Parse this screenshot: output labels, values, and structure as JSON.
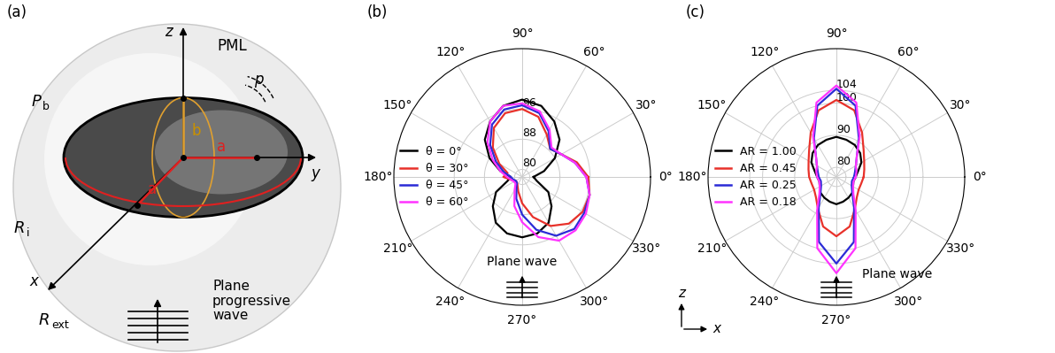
{
  "panel_labels": [
    "(a)",
    "(b)",
    "(c)"
  ],
  "diagram": {
    "outer_region": "PML",
    "axis_x": "x",
    "axis_y": "y",
    "axis_z": "z",
    "pressure": "p",
    "semi_axis_a": "a",
    "semi_axis_b": "b",
    "background_pressure": {
      "text": "P",
      "subscript": "b"
    },
    "inner_radius": {
      "text": "R",
      "subscript": "i"
    },
    "outer_radius": {
      "text": "R",
      "subscript": "ext"
    },
    "incident_wave": [
      "Plane",
      "progressive",
      "wave"
    ]
  },
  "axes_icon": {
    "vertical": "z",
    "horizontal": "x"
  },
  "chart_data": [
    {
      "type": "polar",
      "annotation": "Plane wave",
      "grid": true,
      "legend": "center left",
      "x": [
        0,
        15,
        30,
        45,
        60,
        75,
        90,
        105,
        120,
        135,
        150,
        165,
        180,
        195,
        210,
        225,
        240,
        255,
        270,
        285,
        300,
        315,
        330,
        345
      ],
      "xlim": [
        0,
        360
      ],
      "xticks": [
        {
          "value": 0,
          "label": "0°"
        },
        {
          "value": 30,
          "label": "30°"
        },
        {
          "value": 60,
          "label": "60°"
        },
        {
          "value": 90,
          "label": "90°"
        },
        {
          "value": 120,
          "label": "120°"
        },
        {
          "value": 150,
          "label": "150°"
        },
        {
          "value": 180,
          "label": "180°"
        },
        {
          "value": 210,
          "label": "210°"
        },
        {
          "value": 240,
          "label": "240°"
        },
        {
          "value": 270,
          "label": "270°"
        },
        {
          "value": 300,
          "label": "300°"
        },
        {
          "value": 330,
          "label": "330°"
        }
      ],
      "ylim": [
        78,
        112
      ],
      "yticks": [
        80,
        88,
        96
      ],
      "series": [
        {
          "name": "θ = 0°",
          "color": "#000000",
          "values": [
            81,
            84,
            88,
            92,
            95,
            97.5,
            98.5,
            97.5,
            95,
            92,
            88,
            84,
            81,
            82,
            86,
            89,
            92,
            93.5,
            94,
            93.5,
            92,
            89,
            86,
            82
          ]
        },
        {
          "name": "θ = 30°",
          "color": "#e8312a",
          "values": [
            95.5,
            93,
            90,
            88.5,
            91,
            94.5,
            96,
            95.5,
            93,
            89,
            85,
            82,
            83,
            81,
            80,
            80,
            80.5,
            82,
            85,
            89,
            93,
            95.5,
            96.5,
            96.5
          ]
        },
        {
          "name": "θ = 45°",
          "color": "#2b2bd6",
          "values": [
            95,
            92.5,
            90,
            88.5,
            92,
            95.5,
            97,
            96.5,
            94,
            90,
            86,
            83,
            81,
            80.5,
            80,
            80,
            81,
            84,
            88,
            92.5,
            96,
            97.5,
            97,
            96.5
          ]
        },
        {
          "name": "θ = 60°",
          "color": "#ff33ff",
          "values": [
            95,
            92.5,
            90,
            89,
            92.5,
            96,
            97.5,
            97.5,
            95,
            91,
            87,
            84,
            82,
            81,
            80.5,
            80.5,
            82,
            86,
            90,
            94.5,
            97.5,
            98,
            97.5,
            96.5
          ]
        }
      ]
    },
    {
      "type": "polar",
      "annotation": "Plane wave",
      "grid": true,
      "legend": "center left",
      "x": [
        0,
        15,
        30,
        45,
        60,
        75,
        90,
        105,
        120,
        135,
        150,
        165,
        180,
        195,
        210,
        225,
        240,
        255,
        270,
        285,
        300,
        315,
        330,
        345
      ],
      "xlim": [
        0,
        360
      ],
      "xticks": [
        {
          "value": 0,
          "label": "0°"
        },
        {
          "value": 30,
          "label": "30°"
        },
        {
          "value": 60,
          "label": "60°"
        },
        {
          "value": 90,
          "label": "90°"
        },
        {
          "value": 120,
          "label": "120°"
        },
        {
          "value": 150,
          "label": "150°"
        },
        {
          "value": 180,
          "label": "180°"
        },
        {
          "value": 210,
          "label": "210°"
        },
        {
          "value": 240,
          "label": "240°"
        },
        {
          "value": 270,
          "label": "270°"
        },
        {
          "value": 300,
          "label": "300°"
        },
        {
          "value": 330,
          "label": "330°"
        }
      ],
      "ylim": [
        77,
        117
      ],
      "yticks": [
        80,
        90,
        100,
        104
      ],
      "series": [
        {
          "name": "AR = 1.00",
          "color": "#000000",
          "values": [
            83,
            84,
            86,
            87.5,
            88.5,
            89,
            89.5,
            89,
            88.5,
            87.5,
            86,
            84,
            83,
            82.5,
            83,
            84,
            84.5,
            85,
            85.5,
            85,
            84.5,
            84,
            83,
            82.5
          ]
        },
        {
          "name": "AR = 0.45",
          "color": "#e8312a",
          "values": [
            85.5,
            86,
            87,
            89,
            93,
            98.5,
            101,
            98.5,
            93,
            89,
            87,
            86,
            85.5,
            85,
            85,
            86,
            88.5,
            93,
            95.5,
            93,
            88.5,
            86,
            85,
            85
          ]
        },
        {
          "name": "AR = 0.25",
          "color": "#2b2bd6",
          "values": [
            82.5,
            83,
            84,
            86,
            91,
            100,
            104.5,
            100,
            91,
            86,
            84,
            83,
            82.5,
            82,
            82.5,
            84,
            88,
            98,
            104,
            98,
            88,
            84,
            82.5,
            82
          ]
        },
        {
          "name": "AR = 0.18",
          "color": "#ff33ff",
          "values": [
            83,
            83.5,
            84,
            86,
            91.5,
            101,
            105.5,
            101,
            91.5,
            86,
            84,
            83.5,
            83,
            82.5,
            83,
            84.5,
            89,
            100,
            107,
            100,
            89,
            84.5,
            83,
            82.5
          ]
        }
      ]
    }
  ]
}
